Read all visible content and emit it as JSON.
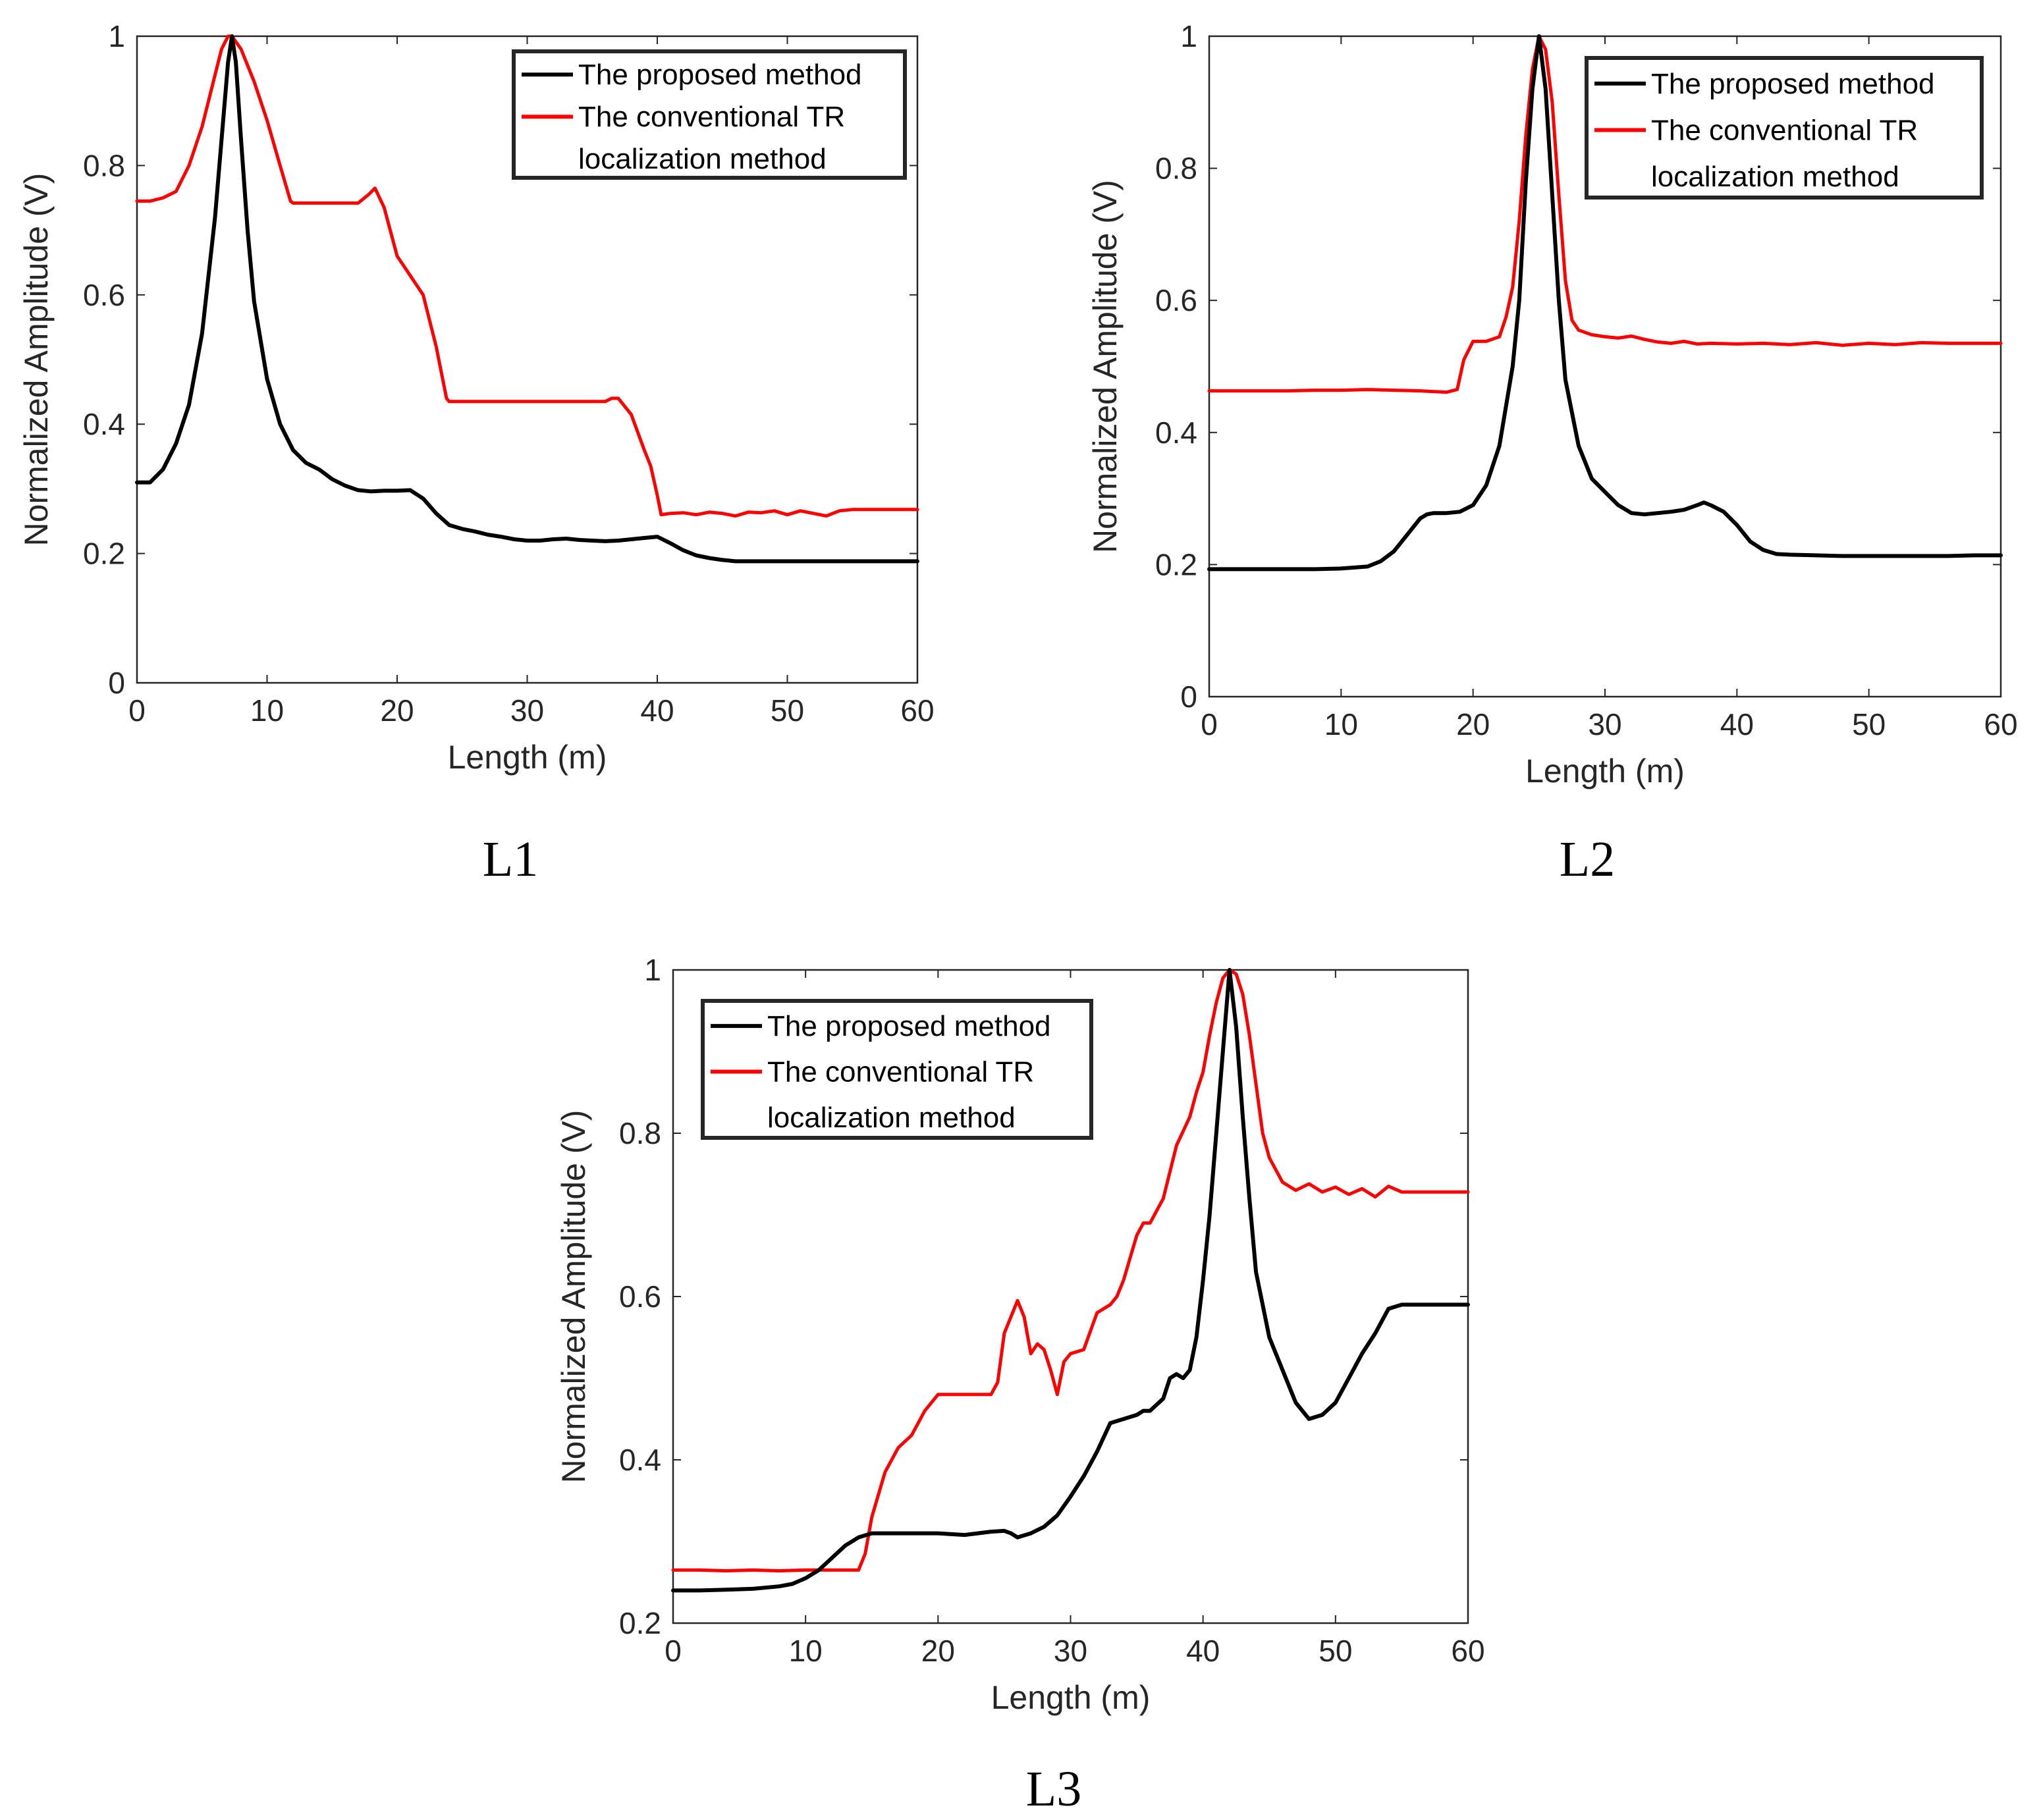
{
  "chart_data": [
    {
      "type": "line",
      "panel_label": "L1",
      "title": "",
      "xlabel": "Length (m)",
      "ylabel": "Normalized Amplitude (V)",
      "xlim": [
        0,
        60
      ],
      "ylim": [
        0,
        1
      ],
      "xticks": [
        "0",
        "10",
        "20",
        "30",
        "40",
        "50",
        "60"
      ],
      "yticks": [
        "0",
        "0.2",
        "0.4",
        "0.6",
        "0.8",
        "1"
      ],
      "legend": {
        "position": "top-right",
        "entries": [
          "The proposed method",
          "The conventional TR",
          "localization method"
        ]
      },
      "series": [
        {
          "name": "The proposed method",
          "color": "#000000",
          "x": [
            0,
            1,
            2,
            3,
            4,
            5,
            6,
            6.5,
            7,
            7.3,
            7.6,
            8,
            8.5,
            9,
            10,
            11,
            12,
            13,
            14,
            15,
            16,
            17,
            18,
            19,
            20,
            21,
            22,
            23,
            24,
            25,
            26,
            27,
            28,
            29,
            30,
            31,
            32,
            33,
            34,
            35,
            36,
            37,
            38,
            39,
            40,
            41,
            42,
            43,
            44,
            45,
            46,
            48,
            50,
            52,
            54,
            56,
            58,
            60
          ],
          "y": [
            0.31,
            0.31,
            0.33,
            0.37,
            0.43,
            0.54,
            0.72,
            0.84,
            0.96,
            1.0,
            0.96,
            0.84,
            0.7,
            0.59,
            0.47,
            0.4,
            0.36,
            0.34,
            0.33,
            0.315,
            0.305,
            0.298,
            0.296,
            0.297,
            0.297,
            0.298,
            0.285,
            0.262,
            0.244,
            0.238,
            0.234,
            0.229,
            0.226,
            0.222,
            0.22,
            0.22,
            0.222,
            0.223,
            0.221,
            0.22,
            0.219,
            0.22,
            0.222,
            0.224,
            0.226,
            0.216,
            0.205,
            0.197,
            0.193,
            0.19,
            0.188,
            0.188,
            0.188,
            0.188,
            0.188,
            0.188,
            0.188,
            0.188
          ]
        },
        {
          "name": "The conventional TR localization method",
          "color": "#ff0000",
          "x": [
            0,
            1,
            2,
            3,
            4,
            5,
            6,
            6.5,
            7,
            7.3,
            8,
            9,
            10,
            11,
            11.8,
            12,
            14,
            16,
            17,
            17.8,
            18.3,
            19,
            20,
            21,
            22,
            23,
            23.8,
            24,
            26,
            28,
            30,
            32,
            34,
            35,
            36,
            36.5,
            37,
            38,
            39,
            39.5,
            40,
            40.3,
            41,
            42,
            43,
            44,
            45,
            46,
            47,
            48,
            49,
            50,
            51,
            52,
            53,
            54,
            55,
            56,
            58,
            60
          ],
          "y": [
            0.745,
            0.745,
            0.75,
            0.76,
            0.8,
            0.86,
            0.94,
            0.98,
            1.0,
            1.0,
            0.98,
            0.93,
            0.87,
            0.8,
            0.745,
            0.742,
            0.742,
            0.742,
            0.742,
            0.755,
            0.765,
            0.735,
            0.66,
            0.63,
            0.6,
            0.52,
            0.44,
            0.435,
            0.435,
            0.435,
            0.435,
            0.435,
            0.435,
            0.435,
            0.435,
            0.44,
            0.44,
            0.415,
            0.36,
            0.335,
            0.29,
            0.26,
            0.262,
            0.263,
            0.26,
            0.264,
            0.262,
            0.258,
            0.264,
            0.263,
            0.266,
            0.26,
            0.266,
            0.262,
            0.258,
            0.266,
            0.268,
            0.268,
            0.268,
            0.268
          ]
        }
      ]
    },
    {
      "type": "line",
      "panel_label": "L2",
      "title": "",
      "xlabel": "Length (m)",
      "ylabel": "Normalized Amplitude (V)",
      "xlim": [
        0,
        60
      ],
      "ylim": [
        0,
        1
      ],
      "xticks": [
        "0",
        "10",
        "20",
        "30",
        "40",
        "50",
        "60"
      ],
      "yticks": [
        "0",
        "0.2",
        "0.4",
        "0.6",
        "0.8",
        "1"
      ],
      "legend": {
        "position": "top-right",
        "entries": [
          "The proposed method",
          "The conventional TR",
          "localization method"
        ]
      },
      "series": [
        {
          "name": "The proposed method",
          "color": "#000000",
          "x": [
            0,
            2,
            4,
            6,
            8,
            10,
            12,
            13,
            14,
            15,
            16,
            16.5,
            17,
            18,
            19,
            20,
            21,
            22,
            23,
            23.5,
            24,
            24.5,
            25,
            25.5,
            26,
            26.5,
            27,
            28,
            29,
            30,
            31,
            32,
            33,
            34,
            35,
            36,
            37,
            37.5,
            38,
            39,
            40,
            41,
            42,
            43,
            44,
            46,
            48,
            50,
            52,
            54,
            56,
            58,
            60
          ],
          "y": [
            0.193,
            0.193,
            0.193,
            0.193,
            0.193,
            0.194,
            0.197,
            0.205,
            0.22,
            0.245,
            0.27,
            0.276,
            0.278,
            0.278,
            0.28,
            0.29,
            0.32,
            0.38,
            0.5,
            0.6,
            0.78,
            0.92,
            1.0,
            0.92,
            0.76,
            0.6,
            0.48,
            0.38,
            0.33,
            0.31,
            0.29,
            0.278,
            0.276,
            0.278,
            0.28,
            0.283,
            0.29,
            0.294,
            0.29,
            0.28,
            0.26,
            0.235,
            0.222,
            0.216,
            0.215,
            0.214,
            0.213,
            0.213,
            0.213,
            0.213,
            0.213,
            0.214,
            0.214
          ]
        },
        {
          "name": "The conventional TR localization method",
          "color": "#ff0000",
          "x": [
            0,
            2,
            4,
            6,
            8,
            10,
            12,
            14,
            16,
            18,
            18.8,
            19.3,
            20,
            21,
            22,
            22.5,
            23,
            23.5,
            24,
            24.5,
            25,
            25.5,
            26,
            26.5,
            27,
            27.5,
            28,
            29,
            30,
            31,
            32,
            33,
            34,
            35,
            36,
            37,
            38,
            40,
            42,
            44,
            46,
            48,
            50,
            52,
            54,
            56,
            58,
            60
          ],
          "y": [
            0.463,
            0.463,
            0.463,
            0.463,
            0.464,
            0.464,
            0.465,
            0.464,
            0.463,
            0.461,
            0.465,
            0.51,
            0.538,
            0.538,
            0.545,
            0.575,
            0.62,
            0.72,
            0.85,
            0.95,
            1.0,
            0.98,
            0.9,
            0.76,
            0.63,
            0.57,
            0.555,
            0.548,
            0.545,
            0.543,
            0.546,
            0.541,
            0.537,
            0.535,
            0.538,
            0.534,
            0.535,
            0.534,
            0.535,
            0.533,
            0.536,
            0.532,
            0.535,
            0.533,
            0.536,
            0.535,
            0.535,
            0.535
          ]
        }
      ]
    },
    {
      "type": "line",
      "panel_label": "L3",
      "title": "",
      "xlabel": "Length (m)",
      "ylabel": "Normalized Amplitude (V)",
      "xlim": [
        0,
        60
      ],
      "ylim": [
        0.2,
        1
      ],
      "xticks": [
        "0",
        "10",
        "20",
        "30",
        "40",
        "50",
        "60"
      ],
      "yticks": [
        "0.2",
        "0.4",
        "0.6",
        "0.8",
        "1"
      ],
      "legend": {
        "position": "top-left",
        "entries": [
          "The proposed method",
          "The conventional TR",
          "localization method"
        ]
      },
      "series": [
        {
          "name": "The proposed method",
          "color": "#000000",
          "x": [
            0,
            2,
            4,
            6,
            8,
            9,
            10,
            11,
            12,
            13,
            14,
            15,
            16,
            18,
            20,
            22,
            24,
            25,
            25.5,
            26,
            27,
            28,
            29,
            30,
            31,
            32,
            33,
            34,
            35,
            35.5,
            36,
            37,
            37.5,
            38,
            38.5,
            39,
            39.5,
            40,
            40.5,
            41,
            41.5,
            42,
            42.5,
            43,
            43.5,
            44,
            45,
            46,
            47,
            48,
            49,
            50,
            51,
            52,
            53,
            54,
            55,
            56,
            58,
            60
          ],
          "y": [
            0.24,
            0.24,
            0.241,
            0.242,
            0.245,
            0.248,
            0.255,
            0.265,
            0.28,
            0.295,
            0.305,
            0.31,
            0.31,
            0.31,
            0.31,
            0.308,
            0.312,
            0.313,
            0.31,
            0.305,
            0.31,
            0.318,
            0.332,
            0.355,
            0.38,
            0.41,
            0.445,
            0.45,
            0.455,
            0.46,
            0.46,
            0.475,
            0.5,
            0.505,
            0.5,
            0.51,
            0.55,
            0.62,
            0.7,
            0.8,
            0.9,
            1.0,
            0.93,
            0.82,
            0.72,
            0.63,
            0.55,
            0.51,
            0.47,
            0.45,
            0.455,
            0.47,
            0.5,
            0.53,
            0.555,
            0.585,
            0.59,
            0.59,
            0.59,
            0.59
          ]
        },
        {
          "name": "The conventional TR localization method",
          "color": "#ff0000",
          "x": [
            0,
            2,
            4,
            6,
            8,
            10,
            12,
            13,
            14,
            14.5,
            15,
            16,
            17,
            18,
            19,
            20,
            22,
            24,
            24.5,
            25,
            26,
            26.5,
            27,
            27.5,
            28,
            28.5,
            29,
            29.5,
            30,
            31,
            32,
            33,
            33.5,
            34,
            35,
            35.5,
            36,
            37,
            38,
            39,
            39.5,
            40,
            40.5,
            41,
            41.5,
            42,
            42.5,
            43,
            43.5,
            44,
            44.5,
            45,
            46,
            47,
            48,
            49,
            50,
            51,
            52,
            53,
            54,
            55,
            56,
            58,
            60
          ],
          "y": [
            0.265,
            0.265,
            0.264,
            0.265,
            0.264,
            0.265,
            0.265,
            0.265,
            0.265,
            0.285,
            0.33,
            0.385,
            0.415,
            0.43,
            0.46,
            0.48,
            0.48,
            0.48,
            0.495,
            0.555,
            0.595,
            0.575,
            0.53,
            0.542,
            0.535,
            0.51,
            0.48,
            0.52,
            0.53,
            0.535,
            0.58,
            0.59,
            0.6,
            0.62,
            0.675,
            0.69,
            0.69,
            0.72,
            0.785,
            0.82,
            0.85,
            0.875,
            0.92,
            0.96,
            0.99,
            1.0,
            0.995,
            0.97,
            0.92,
            0.86,
            0.8,
            0.77,
            0.74,
            0.73,
            0.738,
            0.728,
            0.734,
            0.725,
            0.732,
            0.722,
            0.735,
            0.728,
            0.728,
            0.728,
            0.728
          ]
        }
      ]
    }
  ]
}
